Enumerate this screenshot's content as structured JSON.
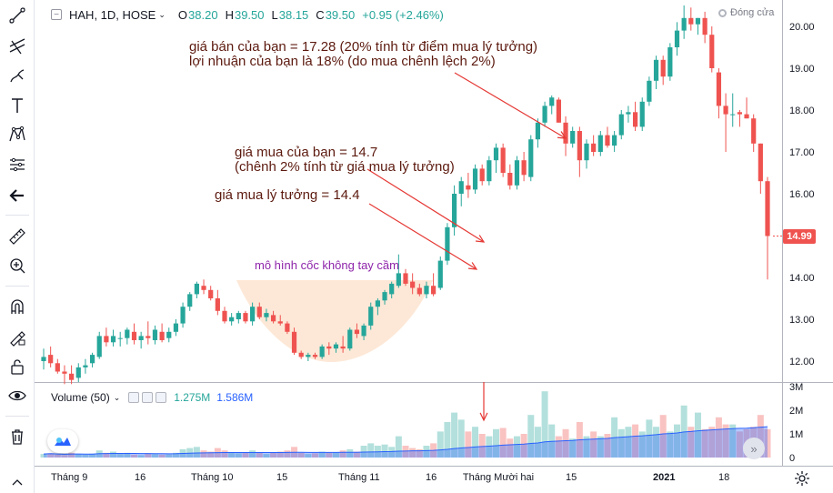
{
  "legend": {
    "symbol": "HAH, 1D, HOSE",
    "open_label": "O",
    "open": "38.20",
    "high_label": "H",
    "high": "39.50",
    "low_label": "L",
    "low": "38.15",
    "close_label": "C",
    "close": "39.50",
    "change": "+0.95 (+2.46%)"
  },
  "market_status": "Đóng cửa",
  "volume_legend": {
    "label": "Volume (50)",
    "value1": "1.275M",
    "value2": "1.586M"
  },
  "annotations": {
    "sell_line1": "giá bán của bạn = 17.28 (20% tính từ điểm mua lý tưởng)",
    "sell_line2": "lợi nhuận của bạn là 18% (do mua chênh lệch 2%)",
    "buy_line1": "giá mua của bạn = 14.7",
    "buy_line2": "(chênh 2% tính từ giá mua lý tưởng)",
    "ideal": "giá mua lý tưởng = 14.4",
    "cup": "mô hình cốc không tay cầm"
  },
  "current_price": "14.99",
  "price_axis": [
    "20.00",
    "19.00",
    "18.00",
    "17.00",
    "16.00",
    "14.00",
    "13.00",
    "12.00"
  ],
  "volume_axis": [
    "3M",
    "2M",
    "1M",
    "0"
  ],
  "time_axis": [
    "Tháng 9",
    "16",
    "Tháng 10",
    "15",
    "Tháng 11",
    "16",
    "Tháng Mười hai",
    "15",
    "2021",
    "18"
  ],
  "colors": {
    "up": "#26a69a",
    "down": "#ef5350",
    "cup_fill": "#fde6d3",
    "arrow": "#e53935",
    "ma": "#2962ff"
  },
  "icons": {
    "toolbar": [
      "crosshair-icon",
      "trend-line-icon",
      "fib-icon",
      "brush-icon",
      "text-icon",
      "pattern-icon",
      "prediction-icon",
      "back-arrow-icon",
      "ruler-icon",
      "zoom-icon",
      "magnet-icon",
      "lock-drawing-icon",
      "lock-icon",
      "eye-icon",
      "trash-icon"
    ]
  },
  "chart_data": {
    "type": "candlestick",
    "price_range": [
      11.55,
      20.5
    ],
    "candles": [
      [
        12.0,
        12.3,
        11.8,
        12.1
      ],
      [
        12.15,
        12.35,
        11.85,
        11.95
      ],
      [
        11.95,
        12.05,
        11.7,
        11.75
      ],
      [
        11.75,
        11.9,
        11.45,
        11.7
      ],
      [
        11.7,
        11.9,
        11.45,
        11.55
      ],
      [
        11.6,
        11.95,
        11.5,
        11.85
      ],
      [
        11.85,
        12.05,
        11.7,
        11.9
      ],
      [
        11.95,
        12.2,
        11.85,
        12.15
      ],
      [
        12.1,
        12.7,
        12.05,
        12.6
      ],
      [
        12.6,
        12.8,
        12.35,
        12.45
      ],
      [
        12.45,
        12.75,
        12.35,
        12.6
      ],
      [
        12.55,
        12.7,
        12.35,
        12.55
      ],
      [
        12.55,
        12.8,
        12.4,
        12.75
      ],
      [
        12.7,
        12.9,
        12.4,
        12.5
      ],
      [
        12.5,
        12.7,
        12.3,
        12.6
      ],
      [
        12.6,
        12.95,
        12.4,
        12.55
      ],
      [
        12.5,
        12.85,
        12.4,
        12.75
      ],
      [
        12.7,
        12.9,
        12.45,
        12.5
      ],
      [
        12.55,
        12.8,
        12.45,
        12.7
      ],
      [
        12.7,
        13.0,
        12.6,
        12.9
      ],
      [
        12.9,
        13.4,
        12.8,
        13.3
      ],
      [
        13.3,
        13.65,
        13.2,
        13.6
      ],
      [
        13.6,
        13.9,
        13.5,
        13.85
      ],
      [
        13.8,
        13.95,
        13.6,
        13.7
      ],
      [
        13.7,
        13.8,
        13.45,
        13.5
      ],
      [
        13.5,
        13.7,
        13.1,
        13.2
      ],
      [
        13.2,
        13.3,
        12.9,
        12.95
      ],
      [
        12.95,
        13.15,
        12.85,
        13.05
      ],
      [
        13.0,
        13.2,
        12.9,
        13.15
      ],
      [
        13.15,
        13.2,
        12.9,
        12.95
      ],
      [
        12.95,
        13.4,
        12.85,
        13.3
      ],
      [
        13.3,
        13.4,
        13.0,
        13.05
      ],
      [
        13.05,
        13.25,
        12.95,
        13.15
      ],
      [
        13.1,
        13.2,
        12.9,
        12.95
      ],
      [
        12.95,
        13.1,
        12.85,
        12.9
      ],
      [
        12.9,
        12.95,
        12.65,
        12.7
      ],
      [
        12.7,
        12.8,
        12.15,
        12.2
      ],
      [
        12.2,
        12.25,
        12.05,
        12.1
      ],
      [
        12.1,
        12.2,
        12.0,
        12.15
      ],
      [
        12.15,
        12.2,
        12.05,
        12.1
      ],
      [
        12.1,
        12.4,
        12.05,
        12.35
      ],
      [
        12.35,
        12.45,
        12.15,
        12.3
      ],
      [
        12.3,
        12.45,
        12.2,
        12.4
      ],
      [
        12.35,
        12.6,
        12.2,
        12.3
      ],
      [
        12.3,
        12.8,
        12.25,
        12.75
      ],
      [
        12.75,
        12.9,
        12.55,
        12.65
      ],
      [
        12.6,
        12.9,
        12.5,
        12.85
      ],
      [
        12.85,
        13.4,
        12.75,
        13.3
      ],
      [
        13.3,
        13.5,
        13.1,
        13.45
      ],
      [
        13.45,
        13.7,
        13.35,
        13.65
      ],
      [
        13.6,
        13.9,
        13.5,
        13.85
      ],
      [
        13.8,
        14.55,
        13.75,
        14.1
      ],
      [
        14.1,
        14.2,
        13.8,
        13.85
      ],
      [
        13.9,
        14.1,
        13.6,
        13.75
      ],
      [
        13.75,
        13.85,
        13.55,
        13.6
      ],
      [
        13.6,
        13.9,
        13.5,
        13.8
      ],
      [
        13.8,
        14.1,
        13.55,
        13.6
      ],
      [
        13.75,
        14.5,
        13.7,
        14.4
      ],
      [
        14.4,
        15.3,
        14.3,
        15.2
      ],
      [
        15.2,
        16.2,
        15.0,
        16.0
      ],
      [
        16.0,
        16.4,
        15.7,
        16.3
      ],
      [
        16.2,
        16.5,
        15.9,
        16.1
      ],
      [
        16.1,
        16.7,
        16.0,
        16.6
      ],
      [
        16.6,
        16.7,
        16.2,
        16.3
      ],
      [
        16.3,
        16.9,
        16.2,
        16.8
      ],
      [
        16.8,
        17.2,
        16.5,
        17.1
      ],
      [
        17.1,
        17.2,
        16.4,
        16.5
      ],
      [
        16.5,
        16.7,
        16.1,
        16.2
      ],
      [
        16.2,
        16.9,
        16.1,
        16.8
      ],
      [
        16.8,
        17.0,
        16.3,
        16.45
      ],
      [
        16.4,
        17.4,
        16.3,
        17.3
      ],
      [
        17.3,
        17.8,
        17.1,
        17.7
      ],
      [
        17.7,
        18.2,
        17.6,
        18.1
      ],
      [
        18.1,
        18.35,
        17.9,
        18.3
      ],
      [
        18.25,
        18.3,
        17.7,
        17.7
      ],
      [
        17.7,
        17.85,
        16.9,
        17.2
      ],
      [
        17.2,
        17.6,
        17.1,
        17.5
      ],
      [
        17.5,
        17.6,
        16.4,
        16.8
      ],
      [
        16.8,
        17.3,
        16.6,
        17.2
      ],
      [
        17.2,
        17.4,
        16.9,
        17.0
      ],
      [
        17.0,
        17.5,
        16.9,
        17.4
      ],
      [
        17.4,
        17.6,
        17.1,
        17.15
      ],
      [
        17.15,
        17.5,
        17.0,
        17.4
      ],
      [
        17.4,
        18.0,
        17.3,
        17.9
      ],
      [
        17.9,
        18.1,
        17.7,
        17.95
      ],
      [
        17.95,
        18.2,
        17.5,
        17.6
      ],
      [
        17.6,
        18.3,
        17.5,
        18.2
      ],
      [
        18.2,
        18.8,
        18.1,
        18.7
      ],
      [
        18.7,
        19.3,
        18.5,
        19.2
      ],
      [
        19.2,
        19.3,
        18.6,
        18.8
      ],
      [
        18.8,
        19.6,
        18.7,
        19.5
      ],
      [
        19.5,
        20.1,
        19.3,
        19.9
      ],
      [
        19.9,
        20.5,
        19.7,
        20.2
      ],
      [
        20.2,
        20.45,
        19.9,
        20.05
      ],
      [
        20.05,
        20.2,
        19.8,
        20.2
      ],
      [
        20.2,
        20.35,
        19.6,
        19.8
      ],
      [
        19.8,
        20.0,
        18.9,
        19.0
      ],
      [
        18.9,
        19.0,
        17.8,
        18.1
      ],
      [
        18.1,
        18.4,
        17.0,
        17.9
      ],
      [
        17.9,
        18.4,
        17.6,
        17.9
      ],
      [
        17.95,
        18.0,
        17.6,
        17.9
      ],
      [
        17.9,
        18.3,
        17.8,
        17.8
      ],
      [
        17.8,
        17.9,
        17.0,
        17.2
      ],
      [
        17.2,
        17.2,
        16.0,
        16.3
      ],
      [
        16.3,
        16.4,
        13.95,
        14.99
      ]
    ],
    "volumes": [
      0.15,
      0.18,
      0.12,
      0.1,
      0.2,
      0.14,
      0.12,
      0.16,
      0.3,
      0.2,
      0.25,
      0.15,
      0.2,
      0.12,
      0.1,
      0.18,
      0.14,
      0.12,
      0.13,
      0.2,
      0.35,
      0.4,
      0.45,
      0.3,
      0.25,
      0.4,
      0.3,
      0.2,
      0.18,
      0.22,
      0.3,
      0.2,
      0.15,
      0.2,
      0.25,
      0.3,
      0.45,
      0.2,
      0.15,
      0.18,
      0.25,
      0.2,
      0.22,
      0.3,
      0.35,
      0.25,
      0.5,
      0.6,
      0.5,
      0.55,
      0.45,
      0.9,
      0.5,
      0.4,
      0.35,
      0.5,
      0.6,
      1.1,
      1.5,
      1.9,
      1.6,
      1.1,
      1.3,
      1.0,
      0.9,
      1.2,
      1.25,
      0.8,
      0.9,
      1.0,
      1.8,
      1.3,
      2.8,
      1.4,
      0.9,
      1.2,
      0.8,
      1.5,
      0.9,
      1.1,
      0.9,
      1.0,
      1.7,
      1.2,
      1.3,
      1.4,
      1.1,
      1.6,
      1.3,
      1.8,
      1.1,
      1.4,
      2.2,
      1.3,
      1.9,
      1.2,
      1.3,
      1.7,
      1.4,
      1.4,
      1.1,
      1.2,
      1.3,
      1.8,
      1.2
    ],
    "volume_range": [
      0,
      3
    ],
    "ideal_buy": 14.4,
    "your_buy": 14.7,
    "your_sell": 17.28
  }
}
